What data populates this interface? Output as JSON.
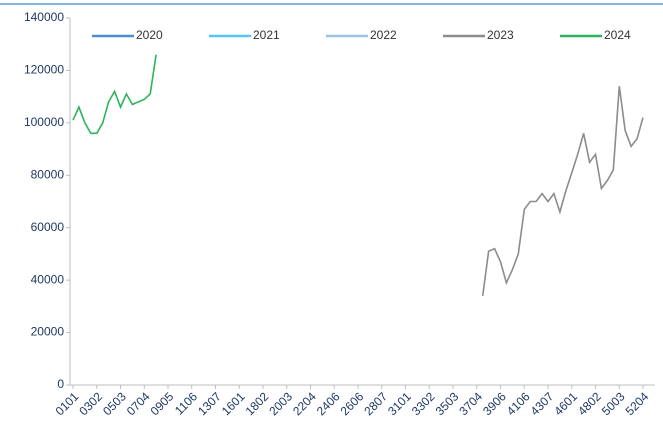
{
  "chart_data": {
    "type": "line",
    "categories": [
      "0101",
      null,
      null,
      null,
      "0302",
      null,
      null,
      null,
      "0503",
      null,
      null,
      null,
      "0704",
      null,
      null,
      null,
      "0905",
      null,
      null,
      null,
      "1106",
      null,
      null,
      null,
      "1307",
      null,
      null,
      null,
      "1601",
      null,
      null,
      null,
      "1802",
      null,
      null,
      null,
      "2003",
      null,
      null,
      null,
      "2204",
      null,
      null,
      null,
      "2406",
      null,
      null,
      null,
      "2606",
      null,
      null,
      null,
      "2807",
      null,
      null,
      null,
      "3101",
      null,
      null,
      null,
      "3302",
      null,
      null,
      null,
      "3503",
      null,
      null,
      null,
      "3704",
      null,
      null,
      null,
      "3906",
      null,
      null,
      null,
      "4106",
      null,
      null,
      null,
      "4307",
      null,
      null,
      null,
      "4601",
      null,
      null,
      null,
      "4802",
      null,
      null,
      null,
      "5003",
      null,
      null,
      null,
      "5204",
      null
    ],
    "series": [
      {
        "name": "2020",
        "color": "#4a8fd4",
        "values": [
          null,
          null,
          null,
          null,
          null,
          null,
          null,
          null,
          null,
          null,
          null,
          null,
          null,
          null,
          null,
          null,
          null,
          null,
          null,
          null,
          null,
          null,
          null,
          null,
          null,
          null,
          null,
          null,
          null,
          null,
          null,
          null,
          null,
          null,
          null,
          null,
          null,
          null,
          null,
          null,
          null,
          null,
          null,
          null,
          null,
          null,
          null,
          null,
          null,
          null,
          null,
          null,
          null,
          null,
          null,
          null,
          null,
          null,
          null,
          null,
          null,
          null,
          null,
          null,
          null,
          null,
          null,
          null,
          null,
          null,
          null,
          null,
          null,
          null,
          null,
          null,
          null,
          null,
          null,
          null,
          null,
          null,
          null,
          null,
          null,
          null,
          null,
          null,
          null,
          null,
          null,
          null,
          null,
          null,
          null,
          null,
          null,
          null
        ]
      },
      {
        "name": "2021",
        "color": "#56c7f2",
        "values": [
          null,
          null,
          null,
          null,
          null,
          null,
          null,
          null,
          null,
          null,
          null,
          null,
          null,
          null,
          null,
          null,
          null,
          null,
          null,
          null,
          null,
          null,
          null,
          null,
          null,
          null,
          null,
          null,
          null,
          null,
          null,
          null,
          null,
          null,
          null,
          null,
          null,
          null,
          null,
          null,
          null,
          null,
          null,
          null,
          null,
          null,
          null,
          null,
          null,
          null,
          null,
          null,
          null,
          null,
          null,
          null,
          null,
          null,
          null,
          null,
          null,
          null,
          null,
          null,
          null,
          null,
          null,
          null,
          null,
          null,
          null,
          null,
          null,
          null,
          null,
          null,
          null,
          null,
          null,
          null,
          null,
          null,
          null,
          null,
          null,
          null,
          null,
          null,
          null,
          null,
          null,
          null,
          null,
          null,
          null,
          null,
          null,
          null
        ]
      },
      {
        "name": "2022",
        "color": "#9cc3e6",
        "values": [
          null,
          null,
          null,
          null,
          null,
          null,
          null,
          null,
          null,
          null,
          null,
          null,
          null,
          null,
          null,
          null,
          null,
          null,
          null,
          null,
          null,
          null,
          null,
          null,
          null,
          null,
          null,
          null,
          null,
          null,
          null,
          null,
          null,
          null,
          null,
          null,
          null,
          null,
          null,
          null,
          null,
          null,
          null,
          null,
          null,
          null,
          null,
          null,
          null,
          null,
          null,
          null,
          null,
          null,
          null,
          null,
          null,
          null,
          null,
          null,
          null,
          null,
          null,
          null,
          null,
          null,
          null,
          null,
          null,
          null,
          null,
          null,
          null,
          null,
          null,
          null,
          null,
          null,
          null,
          null,
          null,
          null,
          null,
          null,
          null,
          null,
          null,
          null,
          null,
          null,
          null,
          null,
          null,
          null,
          null,
          null,
          null,
          null
        ]
      },
      {
        "name": "2023",
        "color": "#8c8c8c",
        "values": [
          null,
          null,
          null,
          null,
          null,
          null,
          null,
          null,
          null,
          null,
          null,
          null,
          null,
          null,
          null,
          null,
          null,
          null,
          null,
          null,
          null,
          null,
          null,
          null,
          null,
          null,
          null,
          null,
          null,
          null,
          null,
          null,
          null,
          null,
          null,
          null,
          null,
          null,
          null,
          null,
          null,
          null,
          null,
          null,
          null,
          null,
          null,
          null,
          null,
          null,
          null,
          null,
          null,
          null,
          null,
          null,
          null,
          null,
          null,
          null,
          null,
          null,
          null,
          null,
          null,
          null,
          null,
          null,
          null,
          34000,
          51000,
          52000,
          47000,
          39000,
          44000,
          50000,
          67000,
          70000,
          70000,
          73000,
          70000,
          73000,
          66000,
          74000,
          81000,
          88000,
          96000,
          85000,
          88000,
          75000,
          78000,
          82000,
          114000,
          97000,
          91000,
          94000,
          102000,
          null
        ]
      },
      {
        "name": "2024",
        "color": "#2db35d",
        "values": [
          101000,
          106000,
          100000,
          96000,
          96000,
          100000,
          108000,
          112000,
          106000,
          111000,
          107000,
          108000,
          109000,
          111000,
          126000,
          null,
          null,
          null,
          null,
          null,
          null,
          null,
          null,
          null,
          null,
          null,
          null,
          null,
          null,
          null,
          null,
          null,
          null,
          null,
          null,
          null,
          null,
          null,
          null,
          null,
          null,
          null,
          null,
          null,
          null,
          null,
          null,
          null,
          null,
          null,
          null,
          null,
          null,
          null,
          null,
          null,
          null,
          null,
          null,
          null,
          null,
          null,
          null,
          null,
          null,
          null,
          null,
          null,
          null,
          null,
          null,
          null,
          null,
          null,
          null,
          null,
          null,
          null,
          null,
          null,
          null,
          null,
          null,
          null,
          null,
          null,
          null,
          null,
          null,
          null,
          null,
          null,
          null,
          null,
          null,
          null,
          null,
          null
        ]
      }
    ],
    "ylim": [
      0,
      140000
    ],
    "yticks": [
      0,
      20000,
      40000,
      60000,
      80000,
      100000,
      120000,
      140000
    ],
    "grid": false,
    "legend": "top"
  }
}
